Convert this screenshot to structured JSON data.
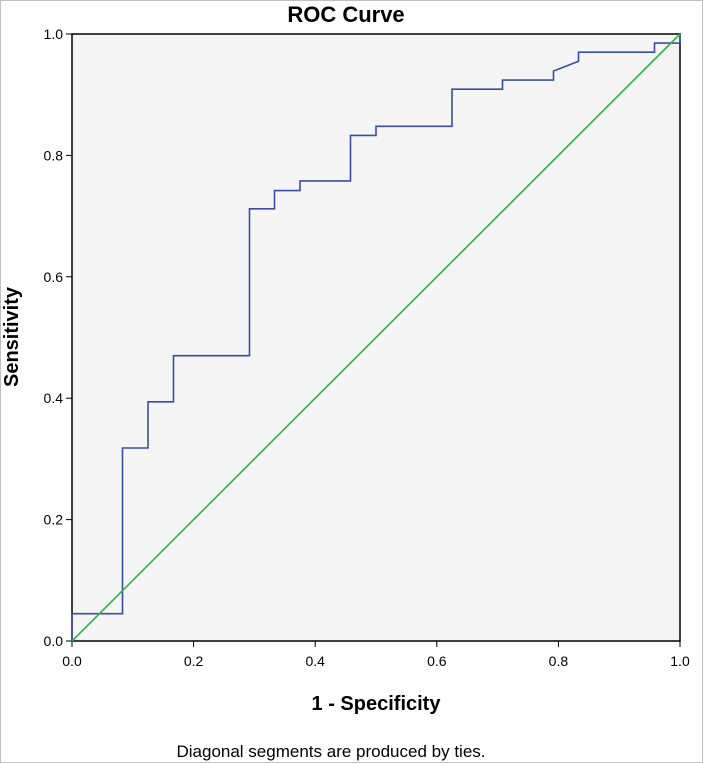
{
  "chart_data": {
    "type": "line",
    "title": "ROC Curve",
    "xlabel": "1 - Specificity",
    "ylabel": "Sensitivity",
    "xlim": [
      0,
      1
    ],
    "ylim": [
      0,
      1
    ],
    "x_ticks": [
      "0.0",
      "0.2",
      "0.4",
      "0.6",
      "0.8",
      "1.0"
    ],
    "y_ticks": [
      "0.0",
      "0.2",
      "0.4",
      "0.6",
      "0.8",
      "1.0"
    ],
    "grid": false,
    "legend": "none",
    "footnote": "Diagonal segments are produced by ties.",
    "series": [
      {
        "color": "#3a4fa3",
        "points": [
          [
            0,
            0
          ],
          [
            0,
            0.045
          ],
          [
            0.083,
            0.045
          ],
          [
            0.083,
            0.318
          ],
          [
            0.125,
            0.318
          ],
          [
            0.125,
            0.394
          ],
          [
            0.167,
            0.394
          ],
          [
            0.167,
            0.47
          ],
          [
            0.292,
            0.47
          ],
          [
            0.292,
            0.712
          ],
          [
            0.333,
            0.712
          ],
          [
            0.333,
            0.742
          ],
          [
            0.375,
            0.742
          ],
          [
            0.375,
            0.758
          ],
          [
            0.458,
            0.758
          ],
          [
            0.458,
            0.833
          ],
          [
            0.5,
            0.833
          ],
          [
            0.5,
            0.848
          ],
          [
            0.625,
            0.848
          ],
          [
            0.625,
            0.909
          ],
          [
            0.708,
            0.909
          ],
          [
            0.708,
            0.924
          ],
          [
            0.792,
            0.924
          ],
          [
            0.792,
            0.939
          ],
          [
            0.833,
            0.955
          ],
          [
            0.833,
            0.97
          ],
          [
            0.958,
            0.97
          ],
          [
            0.958,
            0.985
          ],
          [
            1.0,
            0.985
          ],
          [
            1.0,
            1.0
          ]
        ]
      },
      {
        "color": "#2fb344",
        "points": [
          [
            0,
            0
          ],
          [
            1,
            1
          ]
        ]
      }
    ]
  }
}
